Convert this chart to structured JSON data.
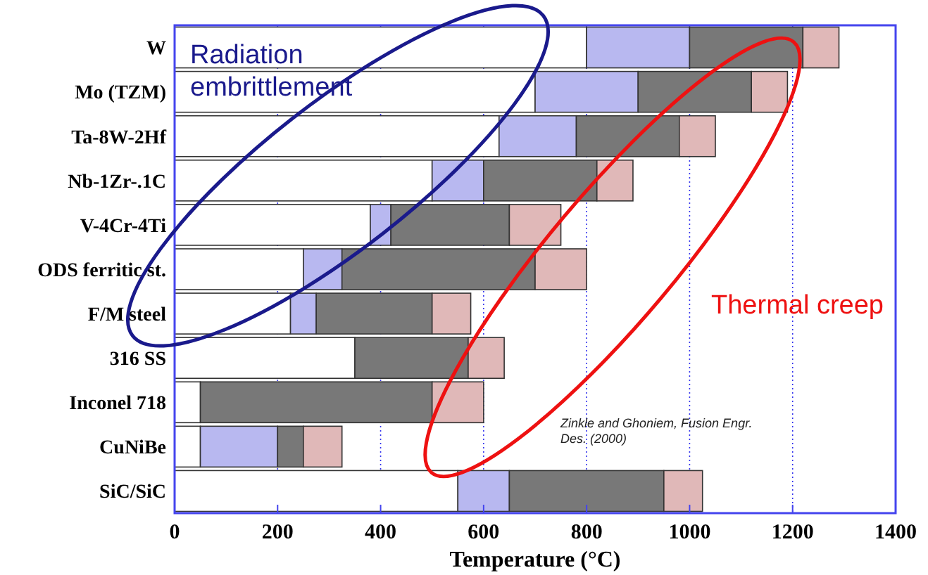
{
  "chart_data": {
    "type": "bar",
    "orientation": "horizontal",
    "stacked": true,
    "xlabel": "Temperature (°C)",
    "categories": [
      "W",
      "Mo (TZM)",
      "Ta-8W-2Hf",
      "Nb-1Zr-.1C",
      "V-4Cr-4Ti",
      "ODS ferritic st.",
      "F/M steel",
      "316 SS",
      "Inconel 718",
      "CuNiBe",
      "SiC/SiC"
    ],
    "series": [
      {
        "color": "#ffffff",
        "values": [
          800,
          700,
          630,
          500,
          380,
          250,
          225,
          350,
          50,
          50,
          550
        ]
      },
      {
        "color": "#b8b8f0",
        "values": [
          200,
          200,
          150,
          100,
          40,
          75,
          50,
          0,
          0,
          150,
          100
        ]
      },
      {
        "color": "#787878",
        "values": [
          220,
          220,
          200,
          220,
          230,
          375,
          225,
          220,
          450,
          50,
          300
        ]
      },
      {
        "color": "#e0b8b8",
        "values": [
          70,
          70,
          70,
          70,
          100,
          100,
          75,
          70,
          100,
          75,
          75
        ]
      }
    ],
    "xlim": [
      0,
      1400
    ],
    "xticks": [
      0,
      200,
      400,
      600,
      800,
      1000,
      1200,
      1400
    ],
    "grid": "x",
    "annotations": [
      "Radiation embrittlement",
      "Thermal creep",
      "Zinkle and Ghoniem, Fusion Engr. Des. (2000)"
    ]
  }
}
